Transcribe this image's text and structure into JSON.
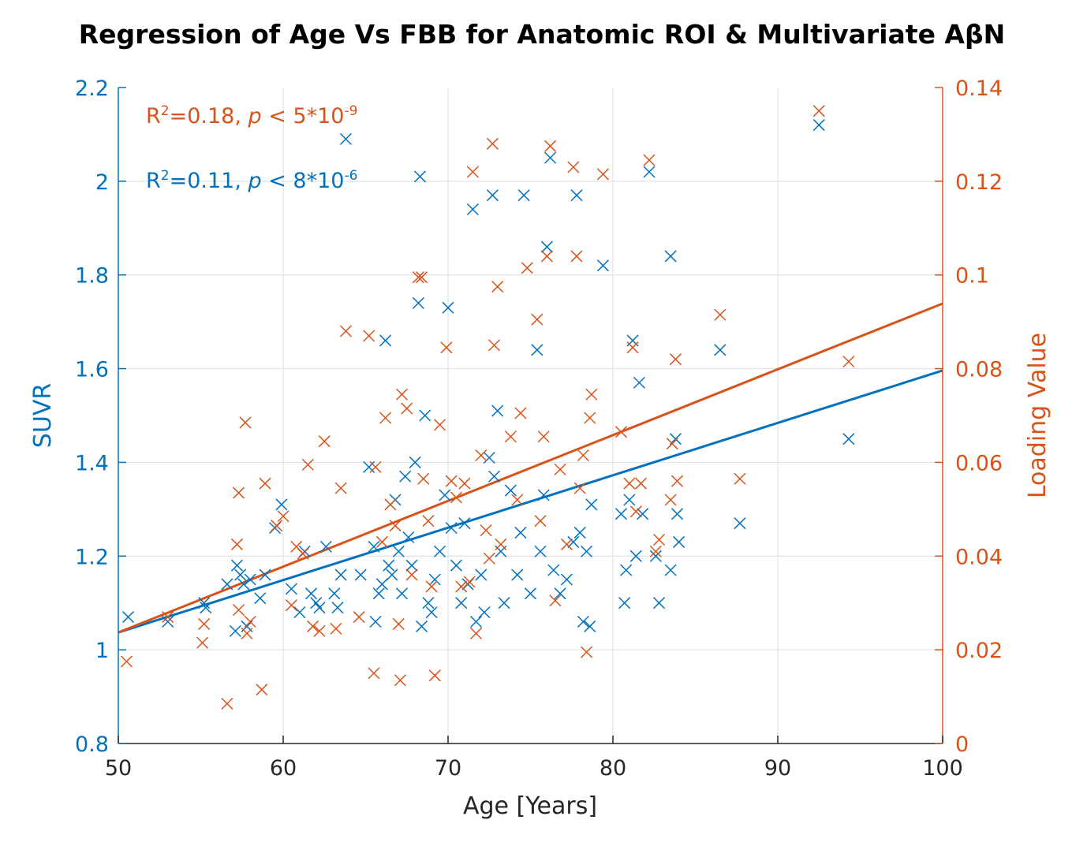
{
  "chart_data": {
    "type": "scatter",
    "title": "Regression of Age Vs FBB for Anatomic ROI & Multivariate AβN",
    "xlabel": "Age [Years]",
    "ylabel_left": "SUVR",
    "ylabel_right": "Loading Value",
    "xlim": [
      50,
      100
    ],
    "ylim_left": [
      0.8,
      2.2
    ],
    "ylim_right": [
      0,
      0.14
    ],
    "xticks": [
      "50",
      "60",
      "70",
      "80",
      "90",
      "100"
    ],
    "yticks_left": [
      "0.8",
      "1",
      "1.2",
      "1.4",
      "1.6",
      "1.8",
      "2",
      "2.2"
    ],
    "yticks_right": [
      "0",
      "0.02",
      "0.04",
      "0.06",
      "0.08",
      "0.1",
      "0.12",
      "0.14"
    ],
    "grid": true,
    "colors": {
      "left": "#0072BD",
      "right": "#D95319",
      "axis_bottom": "#262626"
    },
    "annotations": [
      {
        "axis": "right",
        "r2_prefix": "R",
        "r2_sup": "2",
        "stat": "=0.18, ",
        "p": "p",
        "rel": " < 5*10",
        "exp": "-9"
      },
      {
        "axis": "left",
        "r2_prefix": "R",
        "r2_sup": "2",
        "stat": "=0.11, ",
        "p": "p",
        "rel": " < 8*10",
        "exp": "-6"
      }
    ],
    "series": [
      {
        "axis": "left",
        "marker": "x",
        "points": [
          [
            50.6,
            1.07
          ],
          [
            53.0,
            1.06
          ],
          [
            55.2,
            1.1
          ],
          [
            55.3,
            1.09
          ],
          [
            56.6,
            1.14
          ],
          [
            57.1,
            1.04
          ],
          [
            57.2,
            1.18
          ],
          [
            57.4,
            1.16
          ],
          [
            57.6,
            1.14
          ],
          [
            57.8,
            1.05
          ],
          [
            58.0,
            1.15
          ],
          [
            58.6,
            1.11
          ],
          [
            58.9,
            1.16
          ],
          [
            59.5,
            1.26
          ],
          [
            59.9,
            1.31
          ],
          [
            60.5,
            1.13
          ],
          [
            61.0,
            1.08
          ],
          [
            61.3,
            1.21
          ],
          [
            61.7,
            1.12
          ],
          [
            62.0,
            1.1
          ],
          [
            62.2,
            1.09
          ],
          [
            62.6,
            1.22
          ],
          [
            63.1,
            1.12
          ],
          [
            63.3,
            1.09
          ],
          [
            63.5,
            1.16
          ],
          [
            63.8,
            2.09
          ],
          [
            64.7,
            1.16
          ],
          [
            65.2,
            1.39
          ],
          [
            65.5,
            1.22
          ],
          [
            65.6,
            1.06
          ],
          [
            65.8,
            1.12
          ],
          [
            66.0,
            1.14
          ],
          [
            66.2,
            1.66
          ],
          [
            66.4,
            1.18
          ],
          [
            66.6,
            1.16
          ],
          [
            66.8,
            1.32
          ],
          [
            67.0,
            1.21
          ],
          [
            67.2,
            1.12
          ],
          [
            67.4,
            1.37
          ],
          [
            67.6,
            1.24
          ],
          [
            67.8,
            1.18
          ],
          [
            68.0,
            1.4
          ],
          [
            68.2,
            1.74
          ],
          [
            68.3,
            2.01
          ],
          [
            68.4,
            1.05
          ],
          [
            68.6,
            1.5
          ],
          [
            68.8,
            1.1
          ],
          [
            69.0,
            1.08
          ],
          [
            69.2,
            1.15
          ],
          [
            69.5,
            1.21
          ],
          [
            69.8,
            1.33
          ],
          [
            70.0,
            1.73
          ],
          [
            70.2,
            1.26
          ],
          [
            70.5,
            1.18
          ],
          [
            70.8,
            1.1
          ],
          [
            71.0,
            1.27
          ],
          [
            71.2,
            1.14
          ],
          [
            71.5,
            1.94
          ],
          [
            71.7,
            1.06
          ],
          [
            72.0,
            1.16
          ],
          [
            72.2,
            1.08
          ],
          [
            72.5,
            1.41
          ],
          [
            72.7,
            1.97
          ],
          [
            72.8,
            1.37
          ],
          [
            73.0,
            1.51
          ],
          [
            73.2,
            1.21
          ],
          [
            73.4,
            1.1
          ],
          [
            73.8,
            1.34
          ],
          [
            74.2,
            1.16
          ],
          [
            74.4,
            1.25
          ],
          [
            74.6,
            1.97
          ],
          [
            75.0,
            1.12
          ],
          [
            75.4,
            1.64
          ],
          [
            75.6,
            1.21
          ],
          [
            75.8,
            1.33
          ],
          [
            76.0,
            1.86
          ],
          [
            76.2,
            2.05
          ],
          [
            76.4,
            1.17
          ],
          [
            76.8,
            1.12
          ],
          [
            77.2,
            1.15
          ],
          [
            77.6,
            1.23
          ],
          [
            77.8,
            1.97
          ],
          [
            78.0,
            1.25
          ],
          [
            78.2,
            1.06
          ],
          [
            78.4,
            1.21
          ],
          [
            78.6,
            1.05
          ],
          [
            78.7,
            1.31
          ],
          [
            79.4,
            1.82
          ],
          [
            80.5,
            1.29
          ],
          [
            80.7,
            1.1
          ],
          [
            80.8,
            1.17
          ],
          [
            81.0,
            1.32
          ],
          [
            81.2,
            1.66
          ],
          [
            81.4,
            1.2
          ],
          [
            81.6,
            1.57
          ],
          [
            81.8,
            1.29
          ],
          [
            82.2,
            2.02
          ],
          [
            82.6,
            1.2
          ],
          [
            82.8,
            1.1
          ],
          [
            83.5,
            1.17
          ],
          [
            83.5,
            1.84
          ],
          [
            83.8,
            1.45
          ],
          [
            83.9,
            1.29
          ],
          [
            84.0,
            1.23
          ],
          [
            86.5,
            1.64
          ],
          [
            87.7,
            1.27
          ],
          [
            92.5,
            2.12
          ],
          [
            94.3,
            1.45
          ]
        ]
      },
      {
        "axis": "right",
        "marker": "x",
        "points": [
          [
            50.5,
            0.0175
          ],
          [
            53.0,
            0.027
          ],
          [
            55.1,
            0.0215
          ],
          [
            55.2,
            0.0255
          ],
          [
            56.6,
            0.0085
          ],
          [
            57.2,
            0.0425
          ],
          [
            57.3,
            0.0285
          ],
          [
            57.3,
            0.0535
          ],
          [
            57.7,
            0.0685
          ],
          [
            57.8,
            0.0235
          ],
          [
            58.0,
            0.026
          ],
          [
            58.7,
            0.0115
          ],
          [
            58.9,
            0.0555
          ],
          [
            59.6,
            0.0465
          ],
          [
            60.0,
            0.0485
          ],
          [
            60.5,
            0.0295
          ],
          [
            60.8,
            0.042
          ],
          [
            61.2,
            0.0405
          ],
          [
            61.5,
            0.0595
          ],
          [
            61.8,
            0.025
          ],
          [
            62.2,
            0.024
          ],
          [
            62.5,
            0.0645
          ],
          [
            63.2,
            0.0245
          ],
          [
            63.5,
            0.0545
          ],
          [
            63.8,
            0.088
          ],
          [
            64.6,
            0.027
          ],
          [
            65.2,
            0.087
          ],
          [
            65.5,
            0.015
          ],
          [
            65.6,
            0.059
          ],
          [
            66.0,
            0.043
          ],
          [
            66.2,
            0.0695
          ],
          [
            66.5,
            0.051
          ],
          [
            66.8,
            0.0465
          ],
          [
            67.0,
            0.0255
          ],
          [
            67.1,
            0.0135
          ],
          [
            67.2,
            0.0745
          ],
          [
            67.5,
            0.0715
          ],
          [
            67.8,
            0.036
          ],
          [
            68.2,
            0.0995
          ],
          [
            68.4,
            0.0995
          ],
          [
            68.5,
            0.0565
          ],
          [
            68.8,
            0.0475
          ],
          [
            69.0,
            0.0335
          ],
          [
            69.2,
            0.0145
          ],
          [
            69.5,
            0.068
          ],
          [
            69.9,
            0.0845
          ],
          [
            70.2,
            0.056
          ],
          [
            70.5,
            0.0525
          ],
          [
            70.8,
            0.0335
          ],
          [
            71.0,
            0.0555
          ],
          [
            71.3,
            0.0345
          ],
          [
            71.5,
            0.122
          ],
          [
            71.7,
            0.0235
          ],
          [
            72.0,
            0.0615
          ],
          [
            72.3,
            0.0455
          ],
          [
            72.5,
            0.0395
          ],
          [
            72.7,
            0.128
          ],
          [
            72.8,
            0.085
          ],
          [
            73.0,
            0.0975
          ],
          [
            73.2,
            0.0425
          ],
          [
            73.8,
            0.0655
          ],
          [
            74.2,
            0.052
          ],
          [
            74.4,
            0.0705
          ],
          [
            74.8,
            0.1015
          ],
          [
            75.4,
            0.0905
          ],
          [
            75.6,
            0.0475
          ],
          [
            75.8,
            0.0655
          ],
          [
            76.0,
            0.104
          ],
          [
            76.2,
            0.1275
          ],
          [
            76.5,
            0.0305
          ],
          [
            76.8,
            0.0585
          ],
          [
            77.2,
            0.0425
          ],
          [
            77.6,
            0.123
          ],
          [
            77.8,
            0.104
          ],
          [
            78.0,
            0.0545
          ],
          [
            78.2,
            0.0615
          ],
          [
            78.4,
            0.0195
          ],
          [
            78.6,
            0.0695
          ],
          [
            78.7,
            0.0745
          ],
          [
            79.4,
            0.1215
          ],
          [
            80.5,
            0.0665
          ],
          [
            81.0,
            0.0555
          ],
          [
            81.2,
            0.0845
          ],
          [
            81.4,
            0.0495
          ],
          [
            81.7,
            0.0555
          ],
          [
            82.2,
            0.1245
          ],
          [
            82.6,
            0.041
          ],
          [
            82.8,
            0.0435
          ],
          [
            83.5,
            0.052
          ],
          [
            83.6,
            0.064
          ],
          [
            83.8,
            0.082
          ],
          [
            83.9,
            0.056
          ],
          [
            86.5,
            0.0915
          ],
          [
            87.7,
            0.0565
          ],
          [
            92.5,
            0.135
          ],
          [
            94.3,
            0.0815
          ]
        ]
      }
    ],
    "regression": [
      {
        "axis": "left",
        "x": [
          50,
          100
        ],
        "y": [
          1.037,
          1.596
        ]
      },
      {
        "axis": "right",
        "x": [
          50,
          100
        ],
        "y": [
          0.0237,
          0.0939
        ]
      }
    ]
  }
}
